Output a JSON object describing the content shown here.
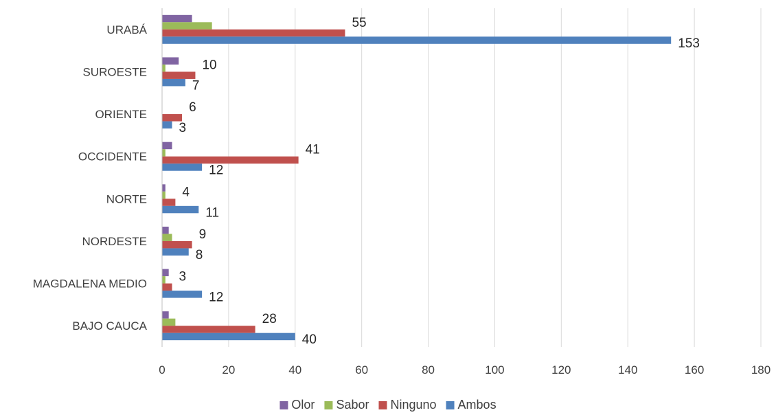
{
  "chart_data": {
    "type": "bar",
    "orientation": "horizontal",
    "categories": [
      "URABÁ",
      "SUROESTE",
      "ORIENTE",
      "OCCIDENTE",
      "NORTE",
      "NORDESTE",
      "MAGDALENA MEDIO",
      "BAJO CAUCA"
    ],
    "series": [
      {
        "name": "Olor",
        "color": "#8064A2",
        "values": [
          9,
          5,
          0,
          3,
          1,
          2,
          2,
          2
        ]
      },
      {
        "name": "Sabor",
        "color": "#9BBB59",
        "values": [
          15,
          1,
          0,
          1,
          1,
          3,
          1,
          4
        ]
      },
      {
        "name": "Ninguno",
        "color": "#C0504D",
        "values": [
          55,
          10,
          6,
          41,
          4,
          9,
          3,
          28
        ]
      },
      {
        "name": "Ambos",
        "color": "#4F81BD",
        "values": [
          153,
          7,
          3,
          12,
          11,
          8,
          12,
          40
        ]
      }
    ],
    "data_labels": {
      "Ninguno": [
        "55",
        "10",
        "6",
        "41",
        "4",
        "9",
        "3",
        "28"
      ],
      "Ambos": [
        "153",
        "7",
        "3",
        "12",
        "11",
        "8",
        "12",
        "40"
      ]
    },
    "xlim": [
      0,
      180
    ],
    "x_ticks": [
      "0",
      "20",
      "40",
      "60",
      "80",
      "100",
      "120",
      "140",
      "160",
      "180"
    ],
    "grid": true,
    "legend_position": "bottom",
    "title": "",
    "xlabel": "",
    "ylabel": ""
  }
}
